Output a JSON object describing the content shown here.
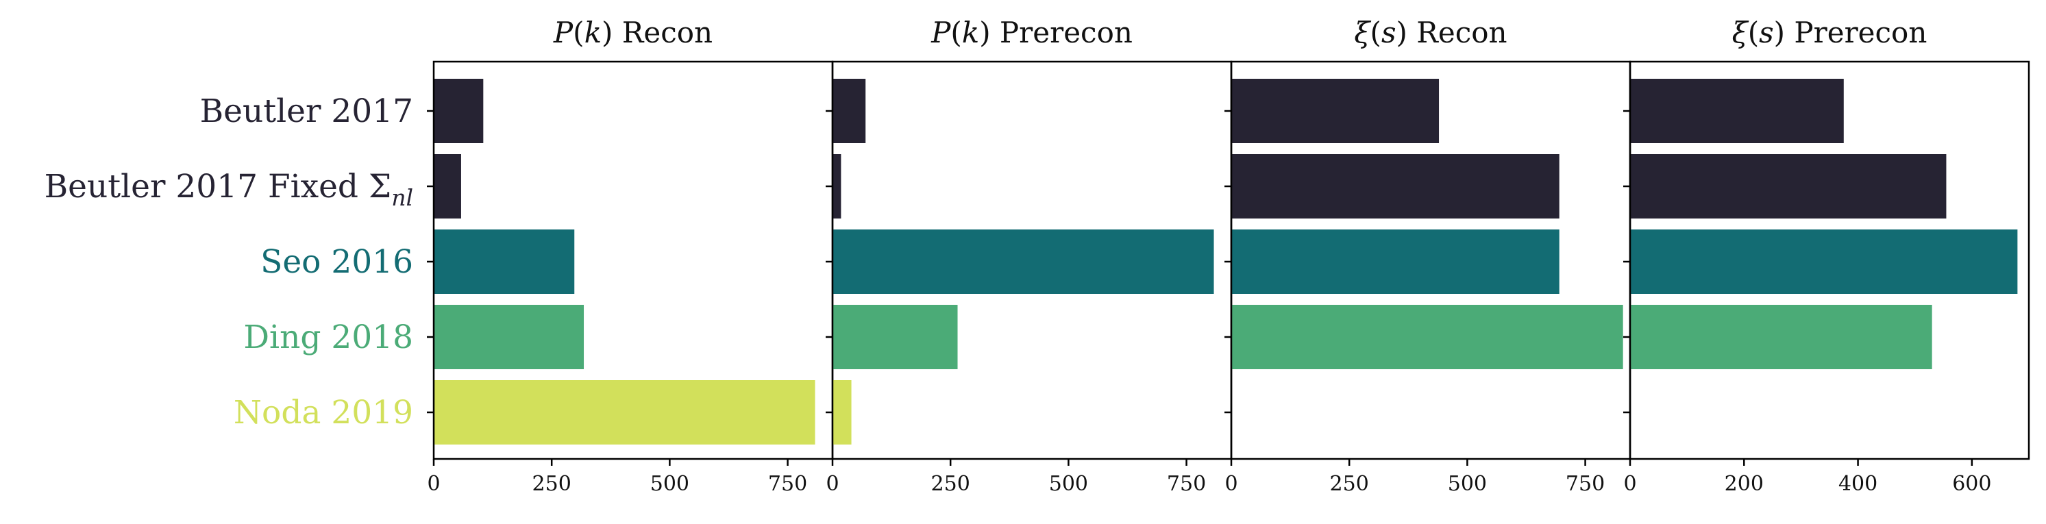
{
  "chart_data": {
    "type": "bar",
    "orientation": "horizontal",
    "categories": [
      {
        "label": "Beutler 2017",
        "color": "#262333"
      },
      {
        "label": "Beutler 2017 Fixed Σ",
        "sub": "nl",
        "color": "#262333"
      },
      {
        "label": "Seo 2016",
        "color": "#136c73"
      },
      {
        "label": "Ding 2018",
        "color": "#4bab77"
      },
      {
        "label": "Noda 2019",
        "color": "#d2e05b"
      }
    ],
    "panels": [
      {
        "title_func": "P",
        "title_arg": "k",
        "title_suffix": "Recon",
        "values": [
          105,
          58,
          298,
          318,
          808
        ],
        "xlim": [
          0,
          845
        ],
        "xticks": [
          0,
          250,
          500,
          750
        ]
      },
      {
        "title_func": "P",
        "title_arg": "k",
        "title_suffix": "Prerecon",
        "values": [
          70,
          18,
          808,
          265,
          40
        ],
        "xlim": [
          0,
          845
        ],
        "xticks": [
          0,
          250,
          500,
          750
        ]
      },
      {
        "title_func": "ξ",
        "title_arg": "s",
        "title_suffix": "Recon",
        "values": [
          440,
          695,
          695,
          830,
          0
        ],
        "xlim": [
          0,
          845
        ],
        "xticks": [
          0,
          250,
          500,
          750
        ]
      },
      {
        "title_func": "ξ",
        "title_arg": "s",
        "title_suffix": "Prerecon",
        "values": [
          375,
          555,
          680,
          530,
          0
        ],
        "xlim": [
          0,
          700
        ],
        "xticks": [
          0,
          200,
          400,
          600
        ]
      }
    ]
  }
}
